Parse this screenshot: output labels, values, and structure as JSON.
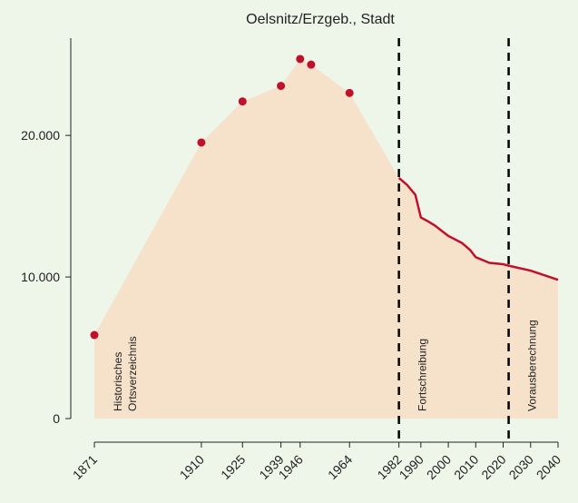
{
  "chart_data": {
    "type": "area",
    "title": "Oelsnitz/Erzgeb., Stadt",
    "points": {
      "x": [
        1871,
        1910,
        1925,
        1939,
        1946,
        1950,
        1964
      ],
      "values": [
        5900,
        19500,
        22400,
        23500,
        25400,
        25000,
        23000
      ]
    },
    "line": {
      "x": [
        1982,
        1985,
        1988,
        1990,
        1992,
        1995,
        2000,
        2005,
        2008,
        2010,
        2015,
        2020,
        2022,
        2030,
        2040
      ],
      "values": [
        17000,
        16500,
        15800,
        14200,
        14000,
        13650,
        12900,
        12400,
        11900,
        11400,
        11000,
        10900,
        10800,
        10450,
        9800
      ]
    },
    "color": "#c0102a",
    "area_color": "#f6e2cb",
    "vlines": [
      1982,
      2022
    ],
    "annotations": [
      {
        "lines": [
          "Historisches",
          "Ortsverzeichnis"
        ]
      },
      {
        "lines": [
          "Fortschreibung"
        ]
      },
      {
        "lines": [
          "Vorausberechnung"
        ]
      }
    ],
    "xlim": [
      1871,
      2040
    ],
    "ylim": [
      0,
      27000
    ],
    "xticks": [
      1871,
      1910,
      1925,
      1939,
      1946,
      1964,
      1982,
      1990,
      2000,
      2010,
      2020,
      2030,
      2040
    ],
    "yticks": [
      0,
      {
        "value": 10000,
        "label": "10.000"
      },
      {
        "value": 20000,
        "label": "20.000"
      }
    ]
  }
}
